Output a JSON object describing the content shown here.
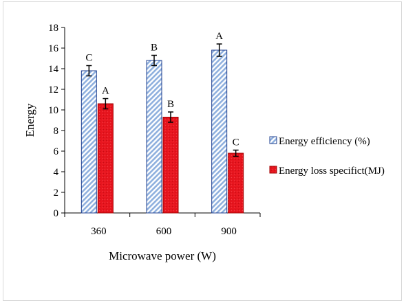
{
  "chart_data": {
    "type": "bar",
    "title": "",
    "xlabel": "Microwave power (W)",
    "ylabel": "Energy",
    "categories": [
      "360",
      "600",
      "900"
    ],
    "ylim": [
      0,
      18
    ],
    "yticks": [
      "0",
      "2",
      "4",
      "6",
      "8",
      "10",
      "12",
      "14",
      "16",
      "18"
    ],
    "grid": false,
    "legend_position": "right",
    "series": [
      {
        "name": "Energy efficiency (%)",
        "values": [
          13.8,
          14.8,
          15.8
        ],
        "errors": [
          0.5,
          0.5,
          0.6
        ],
        "significance": [
          "C",
          "B",
          "A"
        ],
        "color": "#a9c4e8",
        "edge_color": "#1f3f8f",
        "pattern": "diagonal-hatch"
      },
      {
        "name": "Energy loss specifict(MJ)",
        "values": [
          10.6,
          9.3,
          5.8
        ],
        "errors": [
          0.5,
          0.5,
          0.3
        ],
        "significance": [
          "A",
          "B",
          "C"
        ],
        "color": "#e8161f",
        "edge_color": "#a00000",
        "pattern": "solid"
      }
    ]
  }
}
